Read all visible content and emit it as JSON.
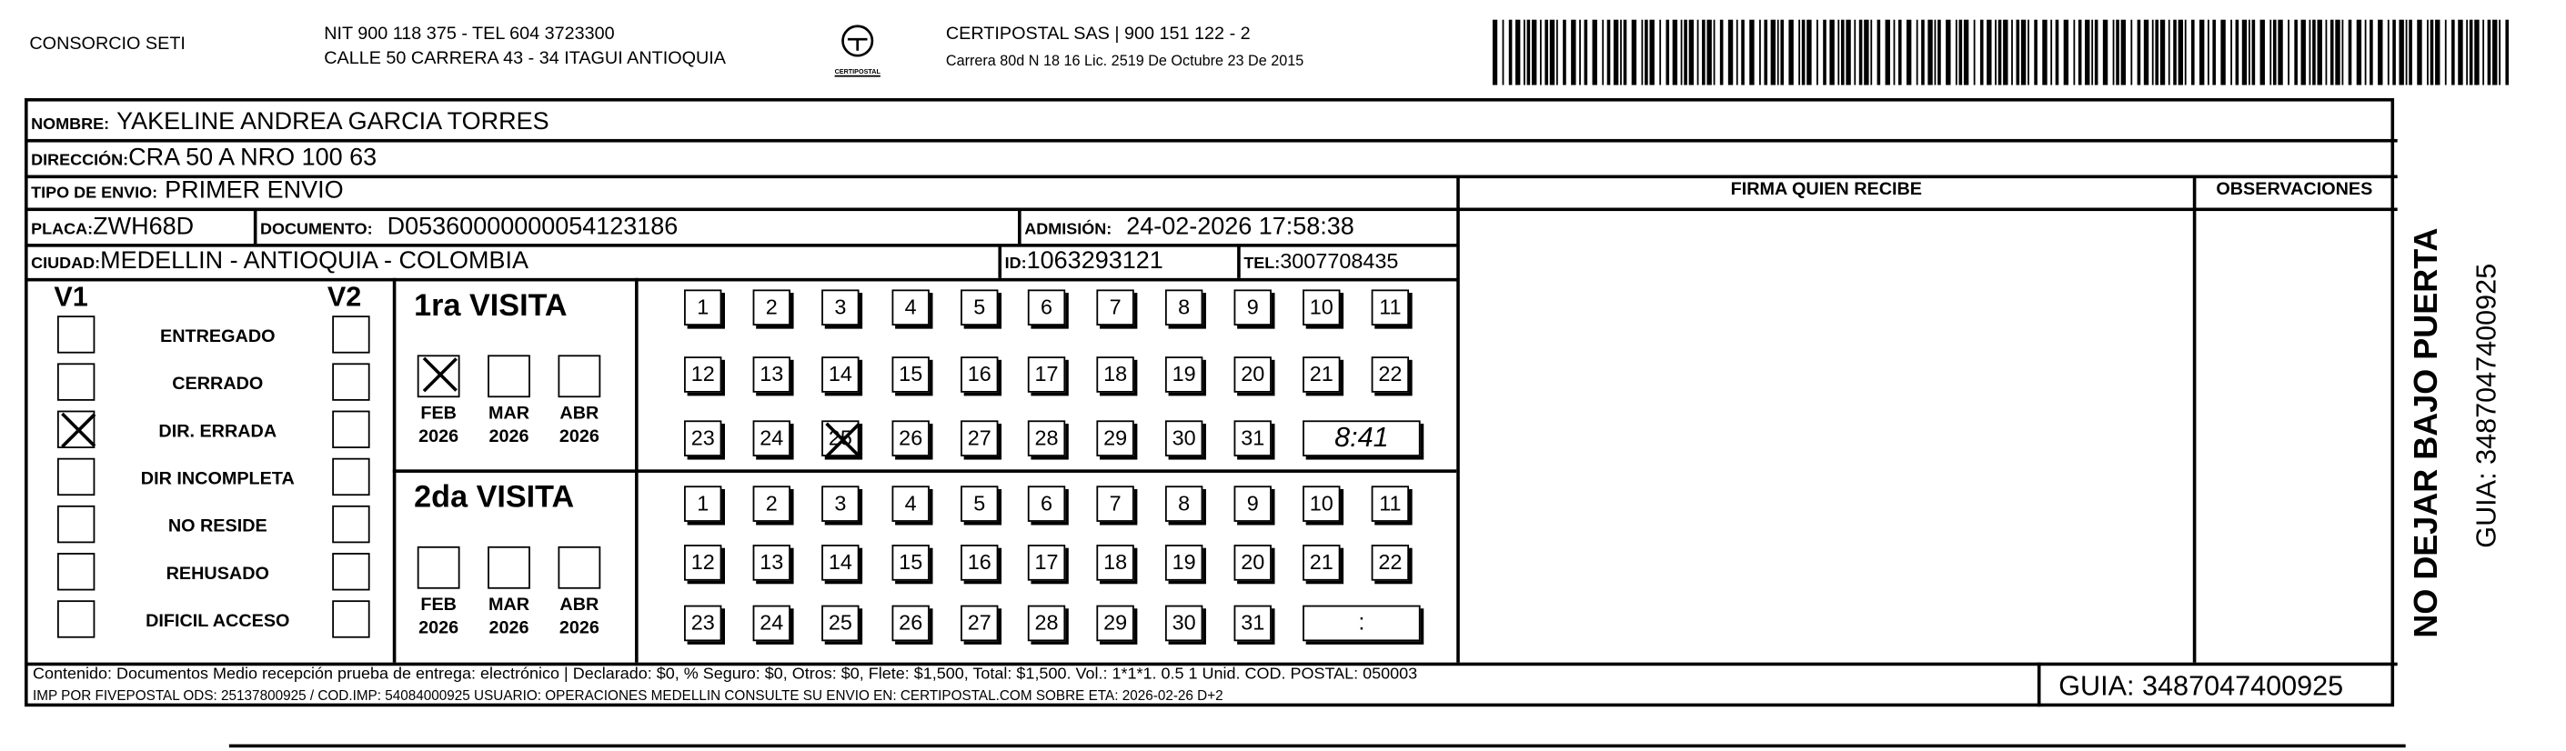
{
  "header": {
    "company": "CONSORCIO SETI",
    "nit_line": "NIT 900 118 375 - TEL 604 3723300",
    "address_line": "CALLE 50 CARRERA 43 - 34 ITAGUI ANTIOQUIA",
    "logo_text": "CERTIPOSTAL",
    "certipostal_line": "CERTIPOSTAL SAS | 900 151 122 - 2",
    "license_line": "Carrera 80d N 18 16  Lic. 2519 De Octubre 23 De 2015"
  },
  "recipient": {
    "nombre_label": "NOMBRE:",
    "nombre": "YAKELINE ANDREA GARCIA TORRES",
    "direccion_label": "DIRECCIÓN:",
    "direccion": "CRA 50 A NRO 100 63",
    "tipo_label": "TIPO DE ENVIO:",
    "tipo": "PRIMER ENVIO",
    "placa_label": "PLACA:",
    "placa": "ZWH68D",
    "documento_label": "DOCUMENTO:",
    "documento": "D05360000000054123186",
    "admision_label": "ADMISIÓN:",
    "admision": "24-02-2026 17:58:38",
    "ciudad_label": "CIUDAD:",
    "ciudad": "MEDELLIN - ANTIOQUIA - COLOMBIA",
    "id_label": "ID:",
    "id": "1063293121",
    "tel_label": "TEL:",
    "tel": "3007708435"
  },
  "columns": {
    "firma": "FIRMA QUIEN RECIBE",
    "observaciones": "OBSERVACIONES"
  },
  "status": {
    "v1_label": "V1",
    "v2_label": "V2",
    "items": [
      {
        "label": "ENTREGADO",
        "v1": false,
        "v2": false
      },
      {
        "label": "CERRADO",
        "v1": false,
        "v2": false
      },
      {
        "label": "DIR. ERRADA",
        "v1": true,
        "v2": false
      },
      {
        "label": "DIR INCOMPLETA",
        "v1": false,
        "v2": false
      },
      {
        "label": "NO RESIDE",
        "v1": false,
        "v2": false
      },
      {
        "label": "REHUSADO",
        "v1": false,
        "v2": false
      },
      {
        "label": "DIFICIL ACCESO",
        "v1": false,
        "v2": false
      }
    ]
  },
  "visits": [
    {
      "title": "1ra VISITA",
      "months": [
        {
          "m": "FEB",
          "y": "2026",
          "checked": true
        },
        {
          "m": "MAR",
          "y": "2026",
          "checked": false
        },
        {
          "m": "ABR",
          "y": "2026",
          "checked": false
        }
      ],
      "checked_day": 25,
      "time": "8:41"
    },
    {
      "title": "2da VISITA",
      "months": [
        {
          "m": "FEB",
          "y": "2026",
          "checked": false
        },
        {
          "m": "MAR",
          "y": "2026",
          "checked": false
        },
        {
          "m": "ABR",
          "y": "2026",
          "checked": false
        }
      ],
      "checked_day": null,
      "time": ":"
    }
  ],
  "days": [
    "1",
    "2",
    "3",
    "4",
    "5",
    "6",
    "7",
    "8",
    "9",
    "10",
    "11",
    "12",
    "13",
    "14",
    "15",
    "16",
    "17",
    "18",
    "19",
    "20",
    "21",
    "22",
    "23",
    "24",
    "25",
    "26",
    "27",
    "28",
    "29",
    "30",
    "31"
  ],
  "footer": {
    "line1": "Contenido: Documentos Medio recepción prueba de entrega: electrónico | Declarado: $0, % Seguro: $0, Otros: $0, Flete: $1,500, Total: $1,500. Vol.: 1*1*1. 0.5  1 Unid. COD. POSTAL: 050003",
    "line2": "IMP POR FIVEPOSTAL ODS: 25137800925 / COD.IMP: 54084000925 USUARIO: OPERACIONES MEDELLIN CONSULTE SU ENVIO EN: CERTIPOSTAL.COM SOBRE ETA: 2026-02-26 D+2",
    "guia": "GUIA: 3487047400925"
  },
  "side": {
    "warning": "NO DEJAR BAJO PUERTA",
    "guia": "GUIA: 3487047400925"
  }
}
